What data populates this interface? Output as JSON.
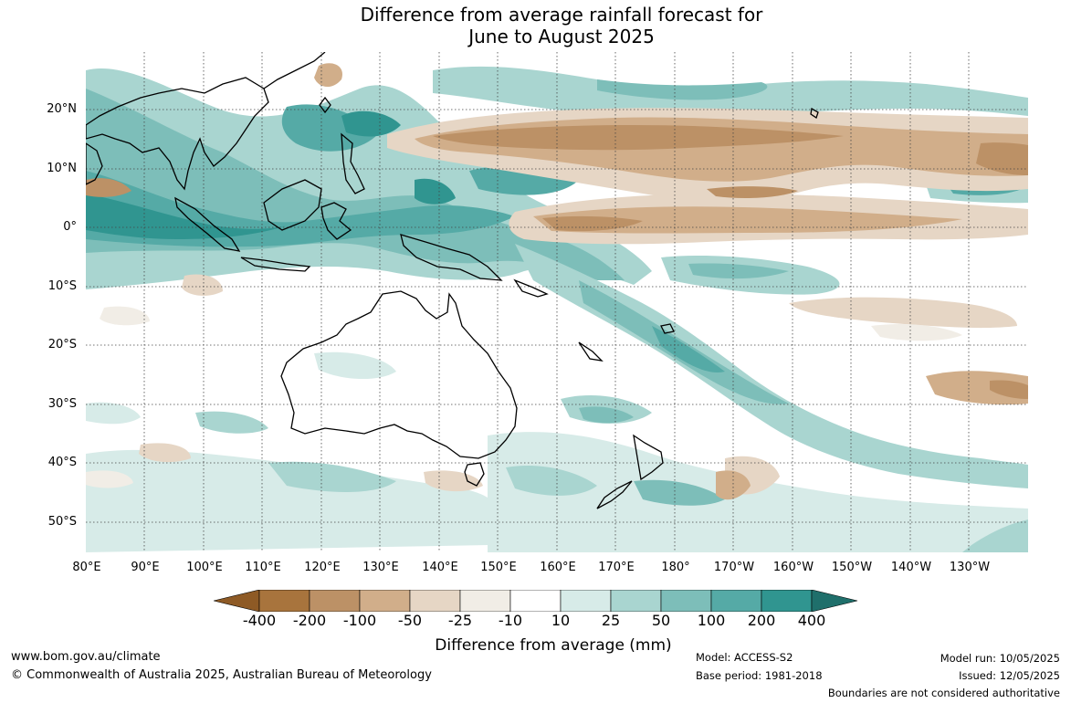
{
  "title_line1": "Difference from average rainfall forecast for",
  "title_line2": "June to August 2025",
  "lat_labels": [
    "20°N",
    "10°N",
    "0°",
    "10°S",
    "20°S",
    "30°S",
    "40°S",
    "50°S"
  ],
  "lon_labels": [
    "80°E",
    "90°E",
    "100°E",
    "110°E",
    "120°E",
    "130°E",
    "140°E",
    "150°E",
    "160°E",
    "170°E",
    "180°",
    "170°W",
    "160°W",
    "150°W",
    "140°W",
    "130°W"
  ],
  "colorbar": {
    "ticks": [
      "-400",
      "-200",
      "-100",
      "-50",
      "-25",
      "-10",
      "10",
      "25",
      "50",
      "100",
      "200",
      "400"
    ],
    "colors": [
      "#8e5a25",
      "#a8743d",
      "#bc9166",
      "#d1ae8a",
      "#e6d6c5",
      "#f1ede6",
      "#ffffff",
      "#d7ebe8",
      "#a9d5d0",
      "#7dbeb9",
      "#55aaa6",
      "#309590",
      "#1f6f6b"
    ],
    "label": "Difference from average (mm)"
  },
  "footer": {
    "website": "www.bom.gov.au/climate",
    "copyright": "© Commonwealth of Australia 2025, Australian Bureau of Meteorology",
    "model": "Model: ACCESS-S2",
    "base_period": "Base period: 1981-2018",
    "model_run": "Model run: 10/05/2025",
    "issued": "Issued: 12/05/2025",
    "disclaimer": "Boundaries are not considered authoritative"
  }
}
